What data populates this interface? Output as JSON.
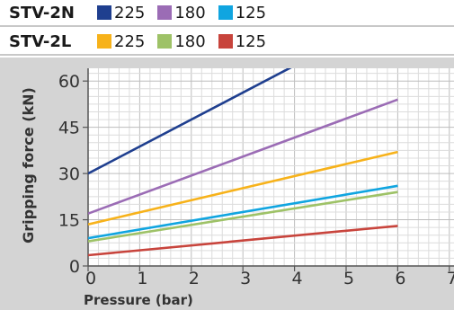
{
  "legend": {
    "rows": [
      {
        "label": "STV-2N",
        "items": [
          {
            "text": "225",
            "color": "#1f3f8f"
          },
          {
            "text": "180",
            "color": "#9b6cb5"
          },
          {
            "text": "125",
            "color": "#10a5e0"
          }
        ]
      },
      {
        "label": "STV-2L",
        "items": [
          {
            "text": "225",
            "color": "#f7b21a"
          },
          {
            "text": "180",
            "color": "#9ec267"
          },
          {
            "text": "125",
            "color": "#c8443c"
          }
        ]
      }
    ]
  },
  "chart_data": {
    "type": "line",
    "title": "",
    "xlabel": "Pressure (bar)",
    "ylabel": "Gripping force (kN)",
    "xlim": [
      0,
      7
    ],
    "ylim": [
      0,
      64
    ],
    "xticks": [
      "0",
      "1",
      "2",
      "3",
      "4",
      "5",
      "6",
      "7"
    ],
    "yticks": [
      "0",
      "15",
      "30",
      "45",
      "60"
    ],
    "grid": true,
    "series": [
      {
        "name": "STV-2N 225",
        "color": "#1f3f8f",
        "x": [
          0,
          4
        ],
        "y": [
          30,
          65
        ]
      },
      {
        "name": "STV-2N 180",
        "color": "#9b6cb5",
        "x": [
          0,
          6
        ],
        "y": [
          17,
          54
        ]
      },
      {
        "name": "STV-2N 125",
        "color": "#10a5e0",
        "x": [
          0,
          6
        ],
        "y": [
          9,
          26
        ]
      },
      {
        "name": "STV-2L 225",
        "color": "#f7b21a",
        "x": [
          0,
          6
        ],
        "y": [
          13.5,
          37
        ]
      },
      {
        "name": "STV-2L 180",
        "color": "#9ec267",
        "x": [
          0,
          6
        ],
        "y": [
          8,
          24
        ]
      },
      {
        "name": "STV-2L 125",
        "color": "#c8443c",
        "x": [
          0,
          6
        ],
        "y": [
          3.5,
          13
        ]
      }
    ]
  }
}
